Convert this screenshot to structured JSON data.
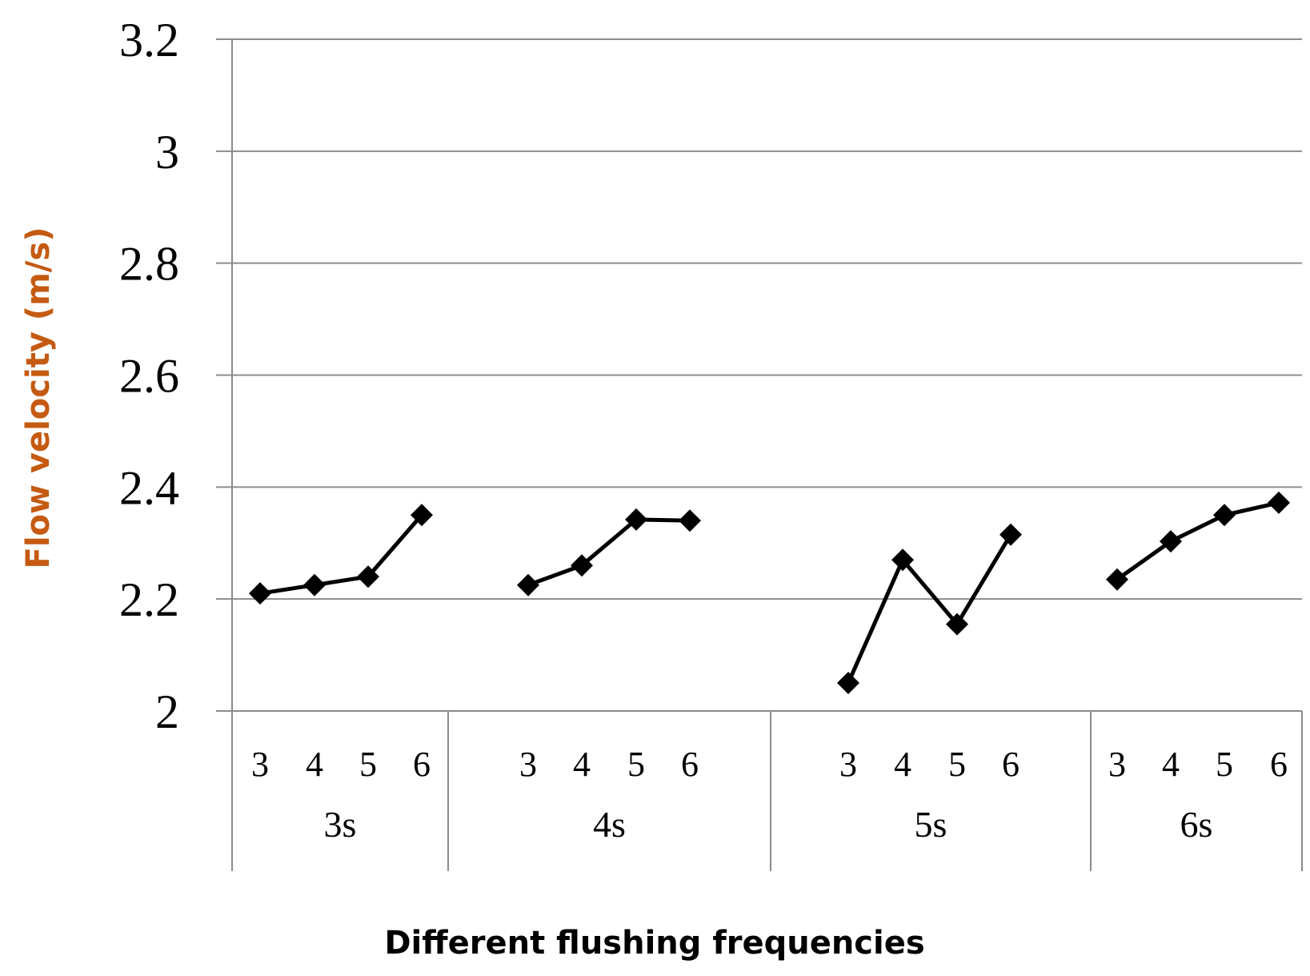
{
  "chart_data": {
    "type": "line",
    "ylabel": "Flow velocity (m/s)",
    "xlabel": "Different flushing frequencies",
    "ylim": [
      2,
      3.2
    ],
    "yticks": [
      "2",
      "2.2",
      "2.4",
      "2.6",
      "2.8",
      "3",
      "3.2"
    ],
    "grid": true,
    "ylabel_color": "#c55a11",
    "line_color": "#000000",
    "marker": "diamond",
    "groups": [
      {
        "name": "3s",
        "x": [
          "3",
          "4",
          "5",
          "6"
        ],
        "values": [
          2.21,
          2.225,
          2.24,
          2.35
        ]
      },
      {
        "name": "4s",
        "x": [
          "3",
          "4",
          "5",
          "6"
        ],
        "values": [
          2.225,
          2.26,
          2.342,
          2.34
        ]
      },
      {
        "name": "5s",
        "x": [
          "3",
          "4",
          "5",
          "6"
        ],
        "values": [
          2.05,
          2.27,
          2.155,
          2.315
        ]
      },
      {
        "name": "6s",
        "x": [
          "3",
          "4",
          "5",
          "6"
        ],
        "values": [
          2.235,
          2.303,
          2.35,
          2.372
        ]
      }
    ]
  }
}
